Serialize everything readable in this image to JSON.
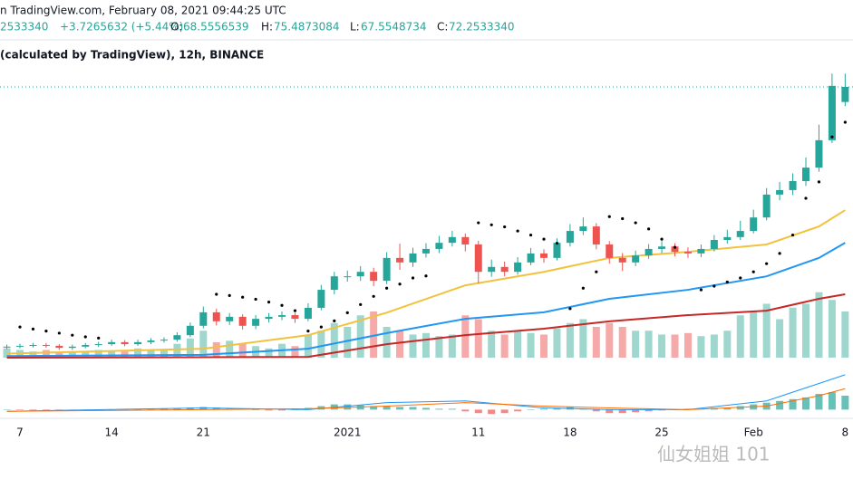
{
  "header": {
    "source": "n TradingView.com, February 08, 2021 09:44:25 UTC",
    "last": "2533340",
    "change": "+3.7265632 (+5.44%)",
    "o_label": "O:",
    "o": "68.5556539",
    "h_label": "H:",
    "h": "75.4873084",
    "l_label": "L:",
    "l": "67.5548734",
    "c_label": "C:",
    "c": "72.2533340",
    "study": "(calculated by TradingView), 12h, BINANCE"
  },
  "watermark": "仙女姐姐 101",
  "chart_data": {
    "type": "candlestick",
    "up_color": "#26a69a",
    "down_color": "#ef5350",
    "ylim": [
      6,
      78
    ],
    "categories": [
      null,
      "7",
      null,
      null,
      null,
      null,
      null,
      null,
      "14",
      null,
      null,
      null,
      null,
      null,
      null,
      "21",
      null,
      null,
      null,
      null,
      null,
      null,
      null,
      null,
      null,
      null,
      "2021",
      null,
      null,
      null,
      null,
      null,
      null,
      null,
      null,
      null,
      "11",
      null,
      null,
      null,
      null,
      null,
      null,
      "18",
      null,
      null,
      null,
      null,
      null,
      null,
      "25",
      null,
      null,
      null,
      null,
      null,
      null,
      "Feb",
      null,
      null,
      null,
      null,
      null,
      null,
      "8"
    ],
    "open": [
      8.5,
      8.7,
      8.9,
      9.1,
      8.9,
      8.4,
      8.7,
      9.1,
      9.3,
      9.8,
      9.3,
      9.8,
      10.2,
      10.4,
      11.5,
      13.8,
      17.1,
      14.9,
      16.0,
      13.8,
      15.5,
      16.0,
      16.4,
      15.5,
      18.2,
      22.6,
      25.9,
      25.9,
      27.0,
      24.8,
      30.4,
      29.3,
      31.5,
      32.6,
      34.1,
      35.5,
      33.7,
      27.0,
      28.2,
      27.0,
      29.3,
      31.5,
      30.4,
      34.1,
      37.0,
      38.1,
      33.7,
      30.4,
      29.3,
      31.0,
      32.6,
      33.2,
      31.9,
      31.5,
      32.6,
      34.8,
      35.5,
      37.0,
      40.3,
      45.9,
      47.0,
      49.2,
      52.5,
      59.2,
      68.5556539
    ],
    "high": [
      9.2,
      9.4,
      9.6,
      9.6,
      9.3,
      9.2,
      9.6,
      9.9,
      10.4,
      10.3,
      10.4,
      10.8,
      11.0,
      12.2,
      14.6,
      18.5,
      18.0,
      16.9,
      16.6,
      16.4,
      16.9,
      17.3,
      17.0,
      19.3,
      23.8,
      27.0,
      27.3,
      28.4,
      28.0,
      31.8,
      33.9,
      32.9,
      34.0,
      35.8,
      37.0,
      36.4,
      34.6,
      30.0,
      29.5,
      30.6,
      32.8,
      32.5,
      35.2,
      38.7,
      40.3,
      38.9,
      34.5,
      31.6,
      32.2,
      33.8,
      34.5,
      34.0,
      33.0,
      33.7,
      36.0,
      37.3,
      39.5,
      42.2,
      47.5,
      49.0,
      51.1,
      55.0,
      63.0,
      75.5,
      75.4873084
    ],
    "low": [
      8.1,
      8.3,
      8.5,
      8.4,
      7.9,
      7.9,
      8.3,
      8.6,
      8.9,
      8.8,
      8.9,
      9.3,
      9.7,
      9.9,
      11.0,
      13.2,
      13.9,
      14.0,
      12.9,
      13.0,
      14.6,
      15.2,
      14.5,
      14.9,
      17.6,
      21.5,
      24.6,
      24.8,
      23.5,
      24.0,
      27.5,
      28.2,
      30.5,
      31.6,
      33.2,
      32.0,
      24.2,
      25.8,
      25.9,
      26.3,
      28.6,
      29.2,
      29.8,
      33.2,
      36.0,
      32.5,
      29.0,
      27.2,
      28.4,
      30.2,
      31.6,
      30.8,
      30.4,
      30.6,
      32.0,
      33.9,
      34.8,
      36.4,
      39.6,
      44.5,
      45.8,
      48.0,
      51.5,
      58.5,
      67.5548734
    ],
    "close": [
      8.7,
      8.9,
      9.1,
      8.9,
      8.4,
      8.7,
      9.1,
      9.3,
      9.8,
      9.3,
      9.8,
      10.2,
      10.4,
      11.5,
      13.8,
      17.1,
      14.9,
      16.0,
      13.8,
      15.5,
      16.0,
      16.4,
      15.5,
      18.2,
      22.6,
      25.9,
      25.9,
      27.0,
      24.8,
      30.4,
      29.3,
      31.5,
      32.6,
      34.1,
      35.5,
      33.7,
      27.0,
      28.2,
      27.0,
      29.3,
      31.5,
      30.4,
      34.1,
      37.0,
      38.1,
      33.7,
      30.4,
      29.3,
      31.0,
      32.6,
      33.2,
      31.9,
      31.5,
      32.6,
      34.8,
      35.5,
      37.0,
      40.3,
      45.9,
      47.0,
      49.2,
      52.5,
      59.2,
      72.5,
      72.253334
    ],
    "volume": {
      "ylim": [
        0,
        100
      ],
      "up_color": "#9fd6ce",
      "down_color": "#f5a9a8",
      "values": [
        12,
        10,
        8,
        10,
        6,
        8,
        8,
        10,
        9,
        8,
        12,
        10,
        10,
        18,
        25,
        35,
        20,
        22,
        18,
        15,
        12,
        18,
        15,
        30,
        35,
        45,
        40,
        55,
        60,
        40,
        35,
        30,
        32,
        28,
        30,
        55,
        50,
        35,
        30,
        35,
        32,
        30,
        38,
        45,
        50,
        40,
        45,
        40,
        35,
        35,
        30,
        30,
        32,
        28,
        30,
        35,
        55,
        60,
        70,
        50,
        65,
        70,
        85,
        75,
        60
      ]
    },
    "moving_averages": [
      {
        "color": "#f2c23e",
        "x": [
          0,
          15,
          23,
          29,
          35,
          41,
          46,
          52,
          58,
          62,
          64
        ],
        "values": [
          7,
          8.2,
          11.5,
          17,
          23.7,
          27,
          30.4,
          31.9,
          33.7,
          38.1,
          42.1
        ]
      },
      {
        "color": "#2196f3",
        "x": [
          0,
          15,
          23,
          29,
          35,
          41,
          46,
          52,
          58,
          62,
          64
        ],
        "values": [
          6.4,
          6.7,
          8.2,
          12,
          15.5,
          17.1,
          20.4,
          22.6,
          25.9,
          30.4,
          34.1
        ]
      },
      {
        "color": "#c62828",
        "x": [
          0,
          15,
          23,
          29,
          35,
          41,
          46,
          52,
          58,
          62,
          64
        ],
        "values": [
          6,
          6.1,
          6.2,
          9.3,
          11.5,
          13.1,
          14.9,
          16.4,
          17.5,
          20.4,
          21.5
        ]
      }
    ],
    "sar": {
      "color": "#000000",
      "x": [
        1,
        2,
        3,
        4,
        5,
        6,
        7,
        16,
        17,
        18,
        19,
        20,
        21,
        22,
        23,
        24,
        25,
        26,
        27,
        28,
        29,
        30,
        31,
        32,
        36,
        37,
        38,
        39,
        40,
        41,
        42,
        43,
        44,
        45,
        46,
        47,
        48,
        49,
        50,
        51,
        53,
        54,
        55,
        56,
        57,
        58,
        59,
        60,
        61,
        62,
        63,
        64
      ],
      "values": [
        13.5,
        13.0,
        12.5,
        12.0,
        11.5,
        11.1,
        10.8,
        21.5,
        21.2,
        20.8,
        20.3,
        19.6,
        18.8,
        17.5,
        12.5,
        13.5,
        15,
        17,
        19,
        21,
        23,
        24,
        25.5,
        26,
        39,
        38.5,
        38,
        37,
        36,
        35,
        34,
        18,
        23,
        27,
        40.5,
        40,
        39,
        37.5,
        35,
        33,
        22.6,
        23.5,
        24.5,
        25.5,
        27,
        29,
        31.5,
        36,
        45,
        49,
        60,
        63.6
      ]
    },
    "macd": {
      "ylim": [
        -5,
        22
      ],
      "macd_color": "#2196f3",
      "signal_color": "#ff6d00",
      "hist_up_color": "#26a69a",
      "hist_down_color": "#ef5350",
      "hist": [
        0,
        -0.3,
        -0.5,
        -0.5,
        -0.8,
        -0.8,
        -0.5,
        -0.3,
        0,
        0.2,
        0.3,
        0.5,
        0.5,
        0.8,
        1.2,
        1.5,
        1.2,
        1,
        0.5,
        0,
        -0.5,
        -0.5,
        0,
        1,
        2,
        3,
        3,
        2.5,
        2,
        2,
        1.5,
        1.5,
        1,
        0.5,
        0.5,
        -1,
        -2,
        -2.5,
        -2,
        -1,
        0,
        0.5,
        1,
        1.5,
        0.5,
        -1,
        -2,
        -2,
        -1.5,
        -1,
        -0.5,
        0,
        0.5,
        0.5,
        1,
        1,
        2,
        3,
        4,
        5,
        6,
        7,
        9,
        10,
        8
      ],
      "x": [
        0,
        15,
        23,
        29,
        35,
        41,
        46,
        52,
        58,
        62,
        64
      ],
      "macd": [
        -1,
        1,
        0,
        4,
        5,
        1,
        0,
        0,
        5,
        15,
        20
      ],
      "signal": [
        -1,
        0,
        0.5,
        2,
        4,
        2,
        1,
        0,
        2,
        8,
        12
      ]
    }
  }
}
